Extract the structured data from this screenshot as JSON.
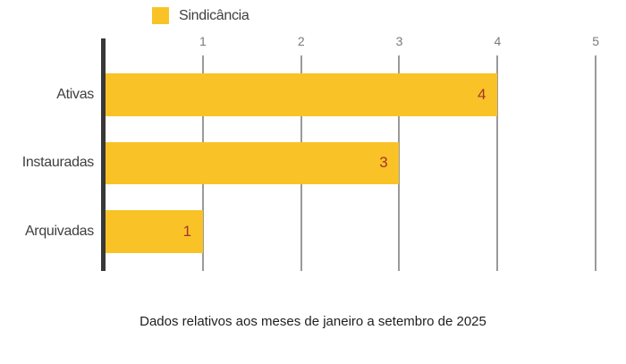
{
  "legend": {
    "position": "top",
    "items": [
      {
        "label": "Sindicância",
        "color": "#F9C327"
      }
    ]
  },
  "chart_data": {
    "type": "bar",
    "orientation": "horizontal",
    "title": "",
    "series": [
      {
        "name": "Sindicância",
        "values": [
          4,
          3,
          1
        ]
      }
    ],
    "categories": [
      "Ativas",
      "Instauradas",
      "Arquivadas"
    ],
    "values": [
      4,
      3,
      1
    ],
    "x_ticks": [
      "1",
      "2",
      "3",
      "4",
      "5"
    ],
    "xlim": [
      0,
      5
    ],
    "grid": true,
    "axis_side": "left",
    "tick_side": "top",
    "colors": {
      "bar": "#F9C327",
      "value_label": "#A5342E",
      "grid_line": "#9a9a9a",
      "axis_line": "#383838",
      "tick_label": "#7a7a7a",
      "category_label": "#3f3f3f"
    }
  },
  "caption": "Dados relativos aos meses de janeiro a setembro de 2025"
}
